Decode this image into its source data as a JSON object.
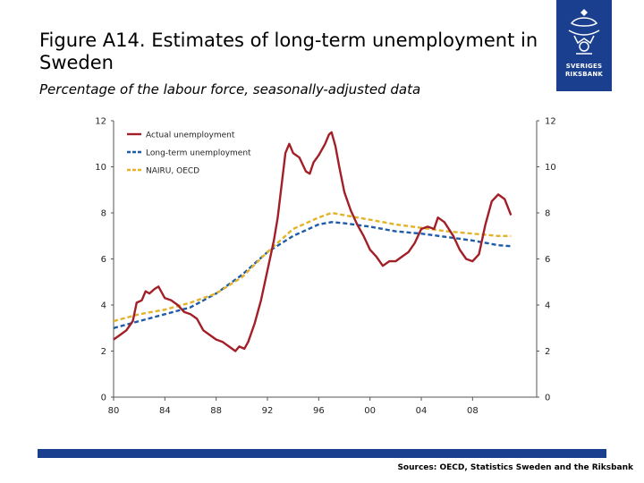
{
  "header": {
    "title": "Figure A14. Estimates of long-term unemployment in Sweden",
    "subtitle": "Percentage of the labour force, seasonally-adjusted data"
  },
  "logo": {
    "text_line1": "SVERIGES",
    "text_line2": "RIKSBANK"
  },
  "footer": {
    "source": "Sources: OECD, Statistics Sweden and the Riksbank"
  },
  "colors": {
    "brand": "#1b3f8f",
    "actual": "#a31f27",
    "longterm": "#1e5ca8",
    "nairu": "#e2b229"
  },
  "chart_data": {
    "type": "line",
    "title": "",
    "xlabel": "",
    "ylabel": "",
    "xlim": [
      1980,
      2013
    ],
    "ylim": [
      0,
      12
    ],
    "x_ticks": [
      1980,
      1984,
      1988,
      1992,
      1996,
      2000,
      2004,
      2008
    ],
    "x_tick_labels": [
      "80",
      "84",
      "88",
      "92",
      "96",
      "00",
      "04",
      "08"
    ],
    "y_ticks": [
      0,
      2,
      4,
      6,
      8,
      10,
      12
    ],
    "y_tick_labels": [
      "0",
      "2",
      "4",
      "6",
      "8",
      "10",
      "12"
    ],
    "secondary_y_axis": true,
    "grid": false,
    "legend_position": "top-left",
    "series": [
      {
        "name": "Actual unemployment",
        "color": "#a31f27",
        "style": "solid",
        "points": [
          [
            1980,
            2.5
          ],
          [
            1980.5,
            2.7
          ],
          [
            1981,
            2.9
          ],
          [
            1981.5,
            3.3
          ],
          [
            1981.8,
            4.1
          ],
          [
            1982.2,
            4.2
          ],
          [
            1982.5,
            4.6
          ],
          [
            1982.8,
            4.5
          ],
          [
            1983.2,
            4.7
          ],
          [
            1983.5,
            4.8
          ],
          [
            1984,
            4.3
          ],
          [
            1984.5,
            4.2
          ],
          [
            1985,
            4.0
          ],
          [
            1985.5,
            3.7
          ],
          [
            1986,
            3.6
          ],
          [
            1986.5,
            3.4
          ],
          [
            1987,
            2.9
          ],
          [
            1987.5,
            2.7
          ],
          [
            1988,
            2.5
          ],
          [
            1988.5,
            2.4
          ],
          [
            1989,
            2.2
          ],
          [
            1989.5,
            2.0
          ],
          [
            1989.8,
            2.2
          ],
          [
            1990.2,
            2.1
          ],
          [
            1990.5,
            2.4
          ],
          [
            1991,
            3.2
          ],
          [
            1991.5,
            4.2
          ],
          [
            1992,
            5.5
          ],
          [
            1992.5,
            6.8
          ],
          [
            1992.8,
            7.8
          ],
          [
            1993.1,
            9.2
          ],
          [
            1993.4,
            10.6
          ],
          [
            1993.7,
            11.0
          ],
          [
            1994,
            10.6
          ],
          [
            1994.5,
            10.4
          ],
          [
            1995,
            9.8
          ],
          [
            1995.3,
            9.7
          ],
          [
            1995.6,
            10.2
          ],
          [
            1996,
            10.5
          ],
          [
            1996.5,
            11.0
          ],
          [
            1996.8,
            11.4
          ],
          [
            1997,
            11.5
          ],
          [
            1997.3,
            10.9
          ],
          [
            1997.6,
            10.0
          ],
          [
            1998,
            8.9
          ],
          [
            1998.5,
            8.1
          ],
          [
            1999,
            7.5
          ],
          [
            1999.5,
            7.0
          ],
          [
            2000,
            6.4
          ],
          [
            2000.5,
            6.1
          ],
          [
            2001,
            5.7
          ],
          [
            2001.5,
            5.9
          ],
          [
            2002,
            5.9
          ],
          [
            2002.5,
            6.1
          ],
          [
            2003,
            6.3
          ],
          [
            2003.5,
            6.7
          ],
          [
            2004,
            7.3
          ],
          [
            2004.5,
            7.4
          ],
          [
            2005,
            7.3
          ],
          [
            2005.3,
            7.8
          ],
          [
            2005.8,
            7.6
          ],
          [
            2006.5,
            7.0
          ],
          [
            2007,
            6.4
          ],
          [
            2007.5,
            6.0
          ],
          [
            2008,
            5.9
          ],
          [
            2008.5,
            6.2
          ],
          [
            2009,
            7.5
          ],
          [
            2009.5,
            8.5
          ],
          [
            2010,
            8.8
          ],
          [
            2010.5,
            8.6
          ],
          [
            2011,
            7.9
          ]
        ]
      },
      {
        "name": "Long-term unemployment",
        "color": "#1e5ca8",
        "style": "dashed",
        "points": [
          [
            1980,
            3.0
          ],
          [
            1982,
            3.3
          ],
          [
            1984,
            3.6
          ],
          [
            1986,
            3.9
          ],
          [
            1988,
            4.5
          ],
          [
            1990,
            5.3
          ],
          [
            1992,
            6.3
          ],
          [
            1994,
            7.0
          ],
          [
            1996,
            7.5
          ],
          [
            1997,
            7.6
          ],
          [
            1998,
            7.55
          ],
          [
            2000,
            7.4
          ],
          [
            2002,
            7.2
          ],
          [
            2004,
            7.1
          ],
          [
            2006,
            6.95
          ],
          [
            2008,
            6.8
          ],
          [
            2010,
            6.6
          ],
          [
            2011,
            6.55
          ]
        ]
      },
      {
        "name": "NAIRU, OECD",
        "color": "#e2b229",
        "style": "dashed",
        "points": [
          [
            1980,
            3.3
          ],
          [
            1982,
            3.6
          ],
          [
            1984,
            3.8
          ],
          [
            1986,
            4.1
          ],
          [
            1988,
            4.5
          ],
          [
            1990,
            5.2
          ],
          [
            1992,
            6.3
          ],
          [
            1994,
            7.3
          ],
          [
            1996,
            7.8
          ],
          [
            1997,
            8.0
          ],
          [
            1998,
            7.9
          ],
          [
            2000,
            7.7
          ],
          [
            2002,
            7.5
          ],
          [
            2004,
            7.35
          ],
          [
            2006,
            7.2
          ],
          [
            2008,
            7.1
          ],
          [
            2010,
            7.0
          ],
          [
            2011,
            7.0
          ]
        ]
      }
    ]
  }
}
